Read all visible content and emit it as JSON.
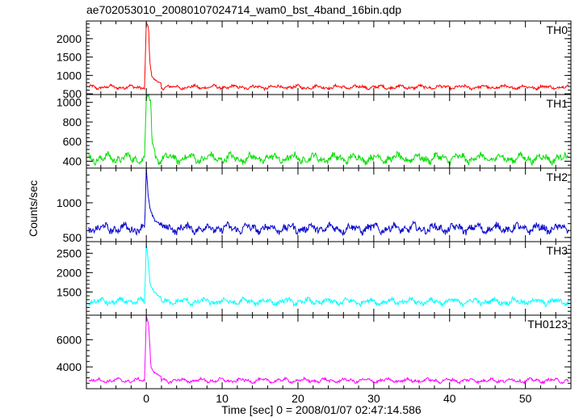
{
  "chart_data": {
    "type": "line",
    "title": "ae702053010_20080107024714_wam0_bst_4band_16bin.qdp",
    "xlabel": "Time [sec] 0 = 2008/01/07 02:47:14.586",
    "ylabel": "Counts/sec",
    "xlim": [
      -7.9,
      56
    ],
    "x_ticks": [
      0,
      10,
      20,
      30,
      40,
      50
    ],
    "grid": false,
    "panels": [
      {
        "name": "TH0",
        "color": "#ff0000",
        "ylim": [
          480,
          2480
        ],
        "y_ticks": [
          500,
          1000,
          1500,
          2000
        ],
        "baseline": 680,
        "wobble": 50,
        "noise": 35,
        "spike": [
          [
            -0.2,
            900
          ],
          [
            0.0,
            2450
          ],
          [
            0.3,
            2300
          ],
          [
            0.45,
            1400
          ],
          [
            0.7,
            1000
          ],
          [
            1.0,
            900
          ],
          [
            2.0,
            770
          ]
        ]
      },
      {
        "name": "TH1",
        "color": "#00e000",
        "ylim": [
          330,
          1080
        ],
        "y_ticks": [
          400,
          600,
          800,
          1000
        ],
        "baseline": 430,
        "wobble": 45,
        "noise": 30,
        "spike": [
          [
            -0.2,
            550
          ],
          [
            0.0,
            1050
          ],
          [
            0.3,
            1080
          ],
          [
            0.6,
            1000
          ],
          [
            0.75,
            600
          ],
          [
            1.2,
            470
          ]
        ]
      },
      {
        "name": "TH2",
        "color": "#0000cc",
        "ylim": [
          440,
          1500
        ],
        "y_ticks": [
          500,
          1000
        ],
        "baseline": 630,
        "wobble": 60,
        "noise": 45,
        "spike": [
          [
            -0.2,
            700
          ],
          [
            0.0,
            1480
          ],
          [
            0.25,
            1100
          ],
          [
            0.5,
            900
          ],
          [
            1.0,
            760
          ],
          [
            2.0,
            680
          ]
        ]
      },
      {
        "name": "TH3",
        "color": "#00ffff",
        "ylim": [
          900,
          2800
        ],
        "y_ticks": [
          1500,
          2000,
          2500
        ],
        "baseline": 1250,
        "wobble": 80,
        "noise": 55,
        "spike": [
          [
            -0.2,
            1400
          ],
          [
            0.0,
            2750
          ],
          [
            0.25,
            2300
          ],
          [
            0.5,
            1700
          ],
          [
            1.0,
            1500
          ],
          [
            2.0,
            1350
          ]
        ]
      },
      {
        "name": "TH0123",
        "color": "#ff00ff",
        "ylim": [
          2400,
          7800
        ],
        "y_ticks": [
          4000,
          6000
        ],
        "baseline": 3000,
        "wobble": 150,
        "noise": 90,
        "spike": [
          [
            -0.2,
            3600
          ],
          [
            0.0,
            7700
          ],
          [
            0.3,
            7200
          ],
          [
            0.5,
            5200
          ],
          [
            0.6,
            4000
          ],
          [
            1.0,
            3600
          ],
          [
            2.0,
            3300
          ]
        ]
      }
    ]
  }
}
